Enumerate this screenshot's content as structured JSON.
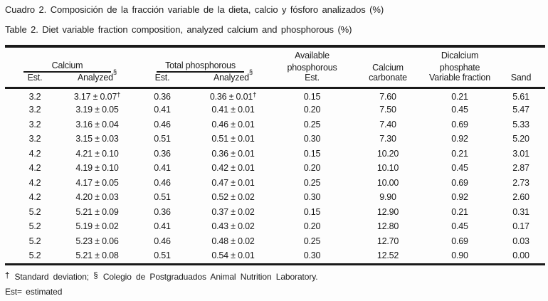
{
  "titles": {
    "es": "Cuadro 2. Composición de la fracción variable de la dieta, calcio y fósforo analizados (%)",
    "en": "Table 2. Diet variable fraction composition, analyzed calcium and phosphorous (%)"
  },
  "colors": {
    "text": "#1a1a1a",
    "background": "#fdfdfd",
    "rule": "#1a1a1a"
  },
  "table": {
    "spanners": {
      "calcium": "Calcium",
      "total_phosphorous": "Total phosphorous"
    },
    "subheaders": {
      "calcium_est": "Est.",
      "calcium_analyzed": "Analyzed",
      "phosphorous_est": "Est.",
      "phosphorous_analyzed": "Analyzed",
      "analyzed_mark": "§"
    },
    "columns": {
      "available_phosphorous": {
        "line1": "Available",
        "line2": "phosphorous",
        "line3": "Est."
      },
      "calcium_carbonate": {
        "line2": "Calcium",
        "line3": "carbonate"
      },
      "dicalcium_phosphate": {
        "line1": "Dicalcium",
        "line2": "phosphate",
        "line3": "Variable fraction"
      },
      "sand": {
        "line3": "Sand"
      }
    },
    "rows": [
      [
        "3.2",
        "3.17 ± 0.07†",
        "0.36",
        "0.36 ± 0.01†",
        "0.15",
        "7.60",
        "0.21",
        "5.61"
      ],
      [
        "3.2",
        "3.19 ± 0.05",
        "0.41",
        "0.41 ± 0.01",
        "0.20",
        "7.50",
        "0.45",
        "5.47"
      ],
      [
        "3.2",
        "3.16 ± 0.04",
        "0.46",
        "0.46 ± 0.01",
        "0.25",
        "7.40",
        "0.69",
        "5.33"
      ],
      [
        "3.2",
        "3.15 ± 0.03",
        "0.51",
        "0.51 ± 0.01",
        "0.30",
        "7.30",
        "0.92",
        "5.20"
      ],
      [
        "4.2",
        "4.21 ± 0.10",
        "0.36",
        "0.36 ± 0.01",
        "0.15",
        "10.20",
        "0.21",
        "3.01"
      ],
      [
        "4.2",
        "4.19 ± 0.10",
        "0.41",
        "0.42 ± 0.01",
        "0.20",
        "10.10",
        "0.45",
        "2.87"
      ],
      [
        "4.2",
        "4.17 ± 0.05",
        "0.46",
        "0.47 ± 0.01",
        "0.25",
        "10.00",
        "0.69",
        "2.73"
      ],
      [
        "4.2",
        "4.20 ± 0.03",
        "0.51",
        "0.52 ± 0.02",
        "0.30",
        "9.90",
        "0.92",
        "2.60"
      ],
      [
        "5.2",
        "5.21 ± 0.09",
        "0.36",
        "0.37 ± 0.02",
        "0.15",
        "12.90",
        "0.21",
        "0.31"
      ],
      [
        "5.2",
        "5.19 ± 0.02",
        "0.41",
        "0.43 ± 0.02",
        "0.20",
        "12.80",
        "0.45",
        "0.17"
      ],
      [
        "5.2",
        "5.23 ± 0.06",
        "0.46",
        "0.48 ± 0.02",
        "0.25",
        "12.70",
        "0.69",
        "0.03"
      ],
      [
        "5.2",
        "5.21 ± 0.08",
        "0.51",
        "0.54 ± 0.01",
        "0.30",
        "12.52",
        "0.90",
        "0.00"
      ]
    ]
  },
  "footnotes": {
    "dagger_mark": "†",
    "dagger_text": "Standard deviation;",
    "section_mark": "§",
    "section_text": "Colegio de Postgraduados Animal Nutrition Laboratory.",
    "estimated": "Est= estimated"
  }
}
